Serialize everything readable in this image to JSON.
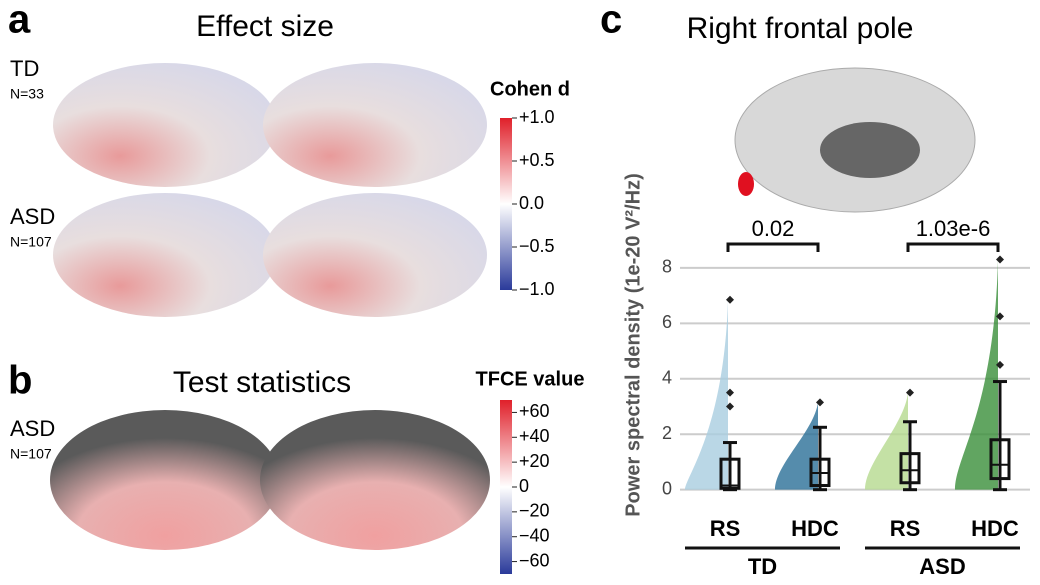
{
  "panel_a": {
    "letter": "a",
    "title": "Effect size",
    "groups": [
      {
        "label": "TD",
        "n": "N=33"
      },
      {
        "label": "ASD",
        "n": "N=107"
      }
    ],
    "colorbar": {
      "title": "Cohen d",
      "lim": [
        -1,
        1
      ],
      "ticks": [
        {
          "value": 1,
          "label": "+1.0"
        },
        {
          "value": 0.5,
          "label": "+0.5"
        },
        {
          "value": 0,
          "label": "0.0"
        },
        {
          "value": -0.5,
          "label": "−0.5"
        },
        {
          "value": -1,
          "label": "−1.0"
        }
      ]
    }
  },
  "panel_b": {
    "letter": "b",
    "title": "Test statistics",
    "group": {
      "label": "ASD",
      "n": "N=107"
    },
    "colorbar": {
      "title": "TFCE value",
      "lim": [
        -70,
        70
      ],
      "ticks": [
        {
          "value": 60,
          "label": "+60"
        },
        {
          "value": 40,
          "label": "+40"
        },
        {
          "value": 20,
          "label": "+20"
        },
        0,
        {
          "value": -20,
          "label": "−20"
        },
        {
          "value": -40,
          "label": "−40"
        },
        {
          "value": -60,
          "label": "−60"
        }
      ]
    }
  },
  "chart_data": {
    "type": "raincloud",
    "letter": "c",
    "title": "Right frontal pole",
    "y_label": "Power spectral density (1e-20 V²/Hz)",
    "ylim": [
      -0.3,
      8.5
    ],
    "yticks": [
      0,
      2,
      4,
      6,
      8
    ],
    "grid": true,
    "categories": [
      "RS",
      "HDC",
      "RS",
      "HDC"
    ],
    "groups": [
      "TD",
      "ASD"
    ],
    "colors": [
      "#a9cde0",
      "#2a6f97",
      "#b5d98f",
      "#3a8f3a"
    ],
    "boxes": [
      {
        "min": 0,
        "q1": 0.05,
        "median": 0.15,
        "q3": 1.1,
        "max": 1.7,
        "outliers": [
          3.0,
          3.5,
          6.85
        ]
      },
      {
        "min": 0,
        "q1": 0.15,
        "median": 0.6,
        "q3": 1.1,
        "max": 2.25,
        "outliers": [
          3.15
        ]
      },
      {
        "min": 0,
        "q1": 0.25,
        "median": 0.7,
        "q3": 1.3,
        "max": 2.45,
        "outliers": [
          3.5
        ]
      },
      {
        "min": 0,
        "q1": 0.4,
        "median": 0.9,
        "q3": 1.8,
        "max": 3.9,
        "outliers": [
          4.5,
          6.25,
          8.3
        ]
      }
    ],
    "significance": [
      "0.02",
      "1.03e-6"
    ]
  }
}
